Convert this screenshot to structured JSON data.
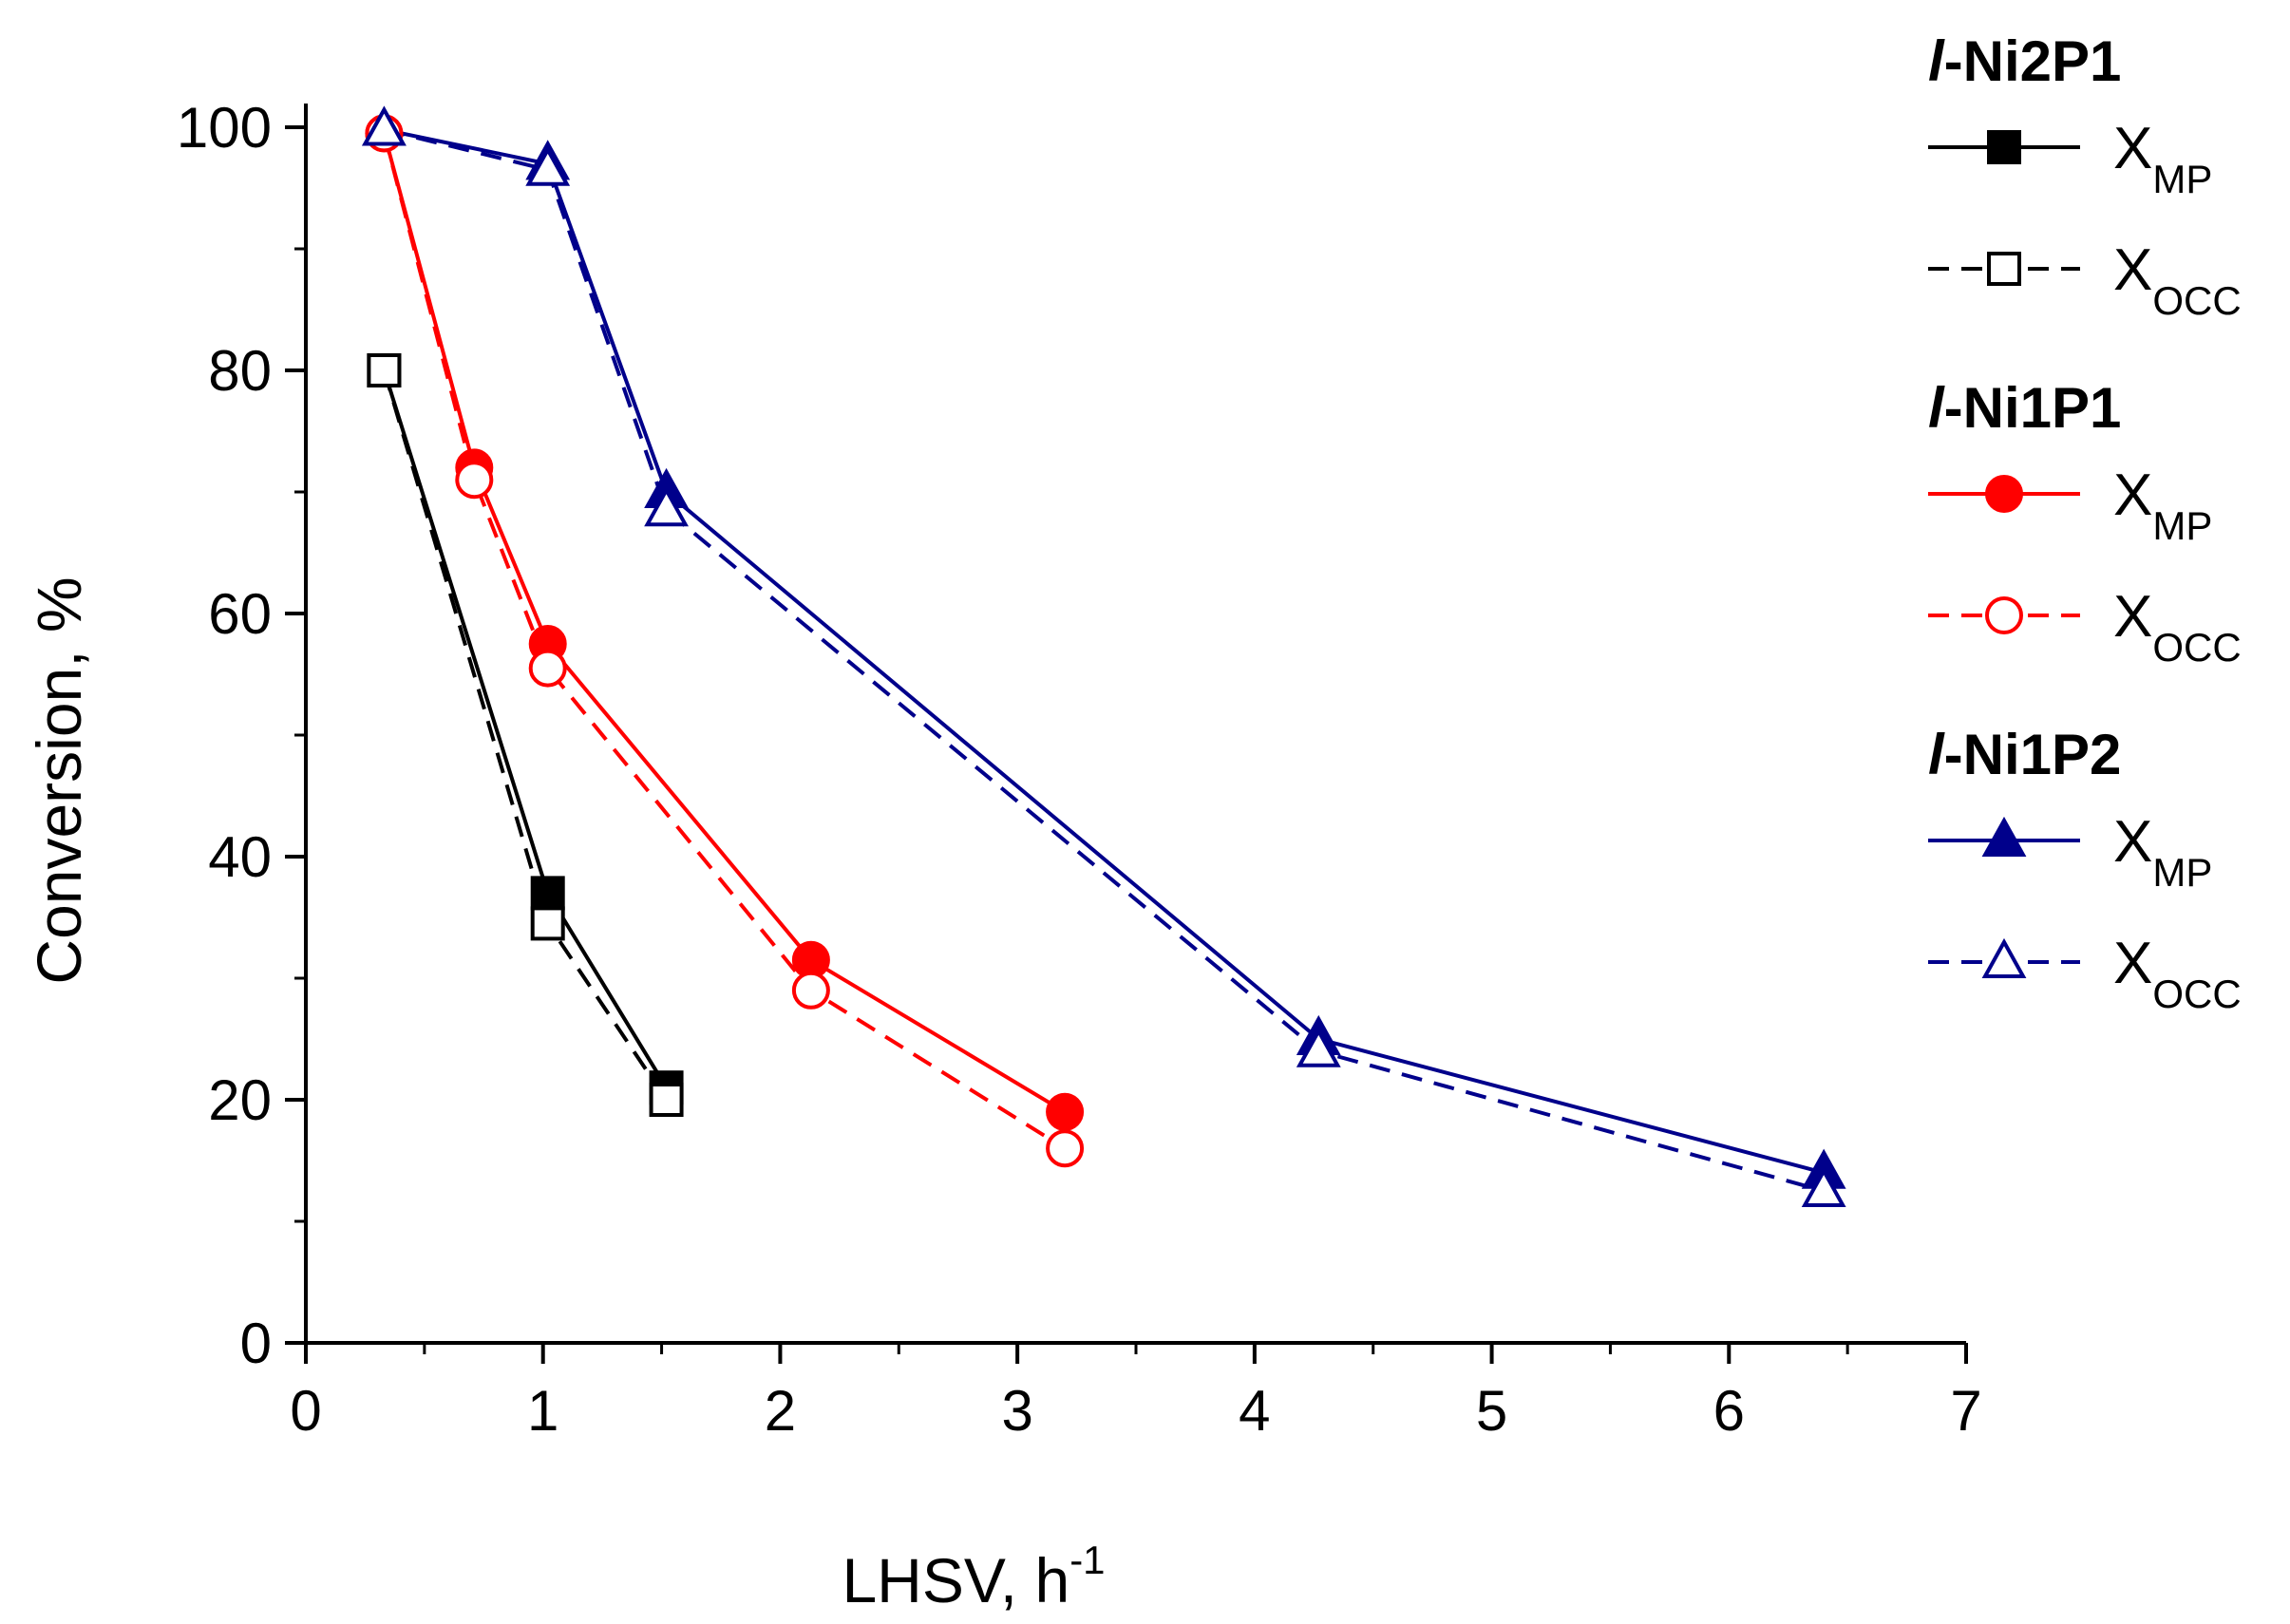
{
  "chart_data": {
    "type": "line",
    "title": "",
    "xlabel": "LHSV, h",
    "xlabel_superscript": "-1",
    "ylabel": "Conversion, %",
    "xlim": [
      0,
      7
    ],
    "ylim": [
      0,
      100
    ],
    "x_ticks": [
      0,
      1,
      2,
      3,
      4,
      5,
      6,
      7
    ],
    "y_ticks": [
      0,
      20,
      40,
      60,
      80,
      100
    ],
    "grid": false,
    "legend_position": "right",
    "series_groups": [
      {
        "name_prefix": "l",
        "name_suffix": "-Ni2P1",
        "color": "#000000",
        "series": [
          {
            "name": "X",
            "subscript": "MP",
            "line_style": "solid",
            "marker": "square",
            "filled": true,
            "x": [
              0.33,
              1.02,
              1.52
            ],
            "y": [
              80,
              37,
              21
            ]
          },
          {
            "name": "X",
            "subscript": "OCC",
            "line_style": "dashed",
            "marker": "square",
            "filled": false,
            "x": [
              0.33,
              1.02,
              1.52
            ],
            "y": [
              80,
              34.5,
              20
            ]
          }
        ]
      },
      {
        "name_prefix": "l",
        "name_suffix": "-Ni1P1",
        "color": "#ff0000",
        "series": [
          {
            "name": "X",
            "subscript": "MP",
            "line_style": "solid",
            "marker": "circle",
            "filled": true,
            "x": [
              0.33,
              0.71,
              1.02,
              2.13,
              3.2
            ],
            "y": [
              99.5,
              72,
              57.5,
              31.5,
              19
            ]
          },
          {
            "name": "X",
            "subscript": "OCC",
            "line_style": "dashed",
            "marker": "circle",
            "filled": false,
            "x": [
              0.33,
              0.71,
              1.02,
              2.13,
              3.2
            ],
            "y": [
              99.5,
              71,
              55.5,
              29,
              16
            ]
          }
        ]
      },
      {
        "name_prefix": "l",
        "name_suffix": "-Ni1P2",
        "color": "#00008b",
        "series": [
          {
            "name": "X",
            "subscript": "MP",
            "line_style": "solid",
            "marker": "triangle",
            "filled": true,
            "x": [
              0.33,
              1.02,
              1.52,
              4.27,
              6.4
            ],
            "y": [
              99.8,
              97,
              70,
              25,
              14
            ]
          },
          {
            "name": "X",
            "subscript": "OCC",
            "line_style": "dashed",
            "marker": "triangle",
            "filled": false,
            "x": [
              0.33,
              1.02,
              1.52,
              4.27,
              6.4
            ],
            "y": [
              99.8,
              96.5,
              68.5,
              24,
              12.5
            ]
          }
        ]
      }
    ]
  }
}
